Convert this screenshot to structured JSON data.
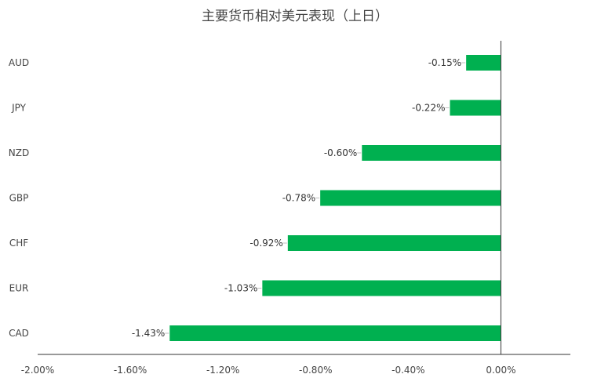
{
  "chart_data": {
    "type": "bar",
    "orientation": "horizontal",
    "title": "主要货币相对美元表现（上日）",
    "categories": [
      "AUD",
      "JPY",
      "NZD",
      "GBP",
      "CHF",
      "EUR",
      "CAD"
    ],
    "values": [
      -0.15,
      -0.22,
      -0.6,
      -0.78,
      -0.92,
      -1.03,
      -1.43
    ],
    "value_labels": [
      "-0.15%",
      "-0.22%",
      "-0.60%",
      "-0.78%",
      "-0.92%",
      "-1.03%",
      "-1.43%"
    ],
    "xlim": [
      -2.0,
      0.3
    ],
    "xticks": [
      -2.0,
      -1.6,
      -1.2,
      -0.8,
      -0.4,
      0.0
    ],
    "xtick_labels": [
      "-2.00%",
      "-1.60%",
      "-1.20%",
      "-0.80%",
      "-0.40%",
      "0.00%"
    ],
    "xlabel": "",
    "ylabel": "",
    "grid": false,
    "legend": "none",
    "bar_color": "#00b050"
  }
}
